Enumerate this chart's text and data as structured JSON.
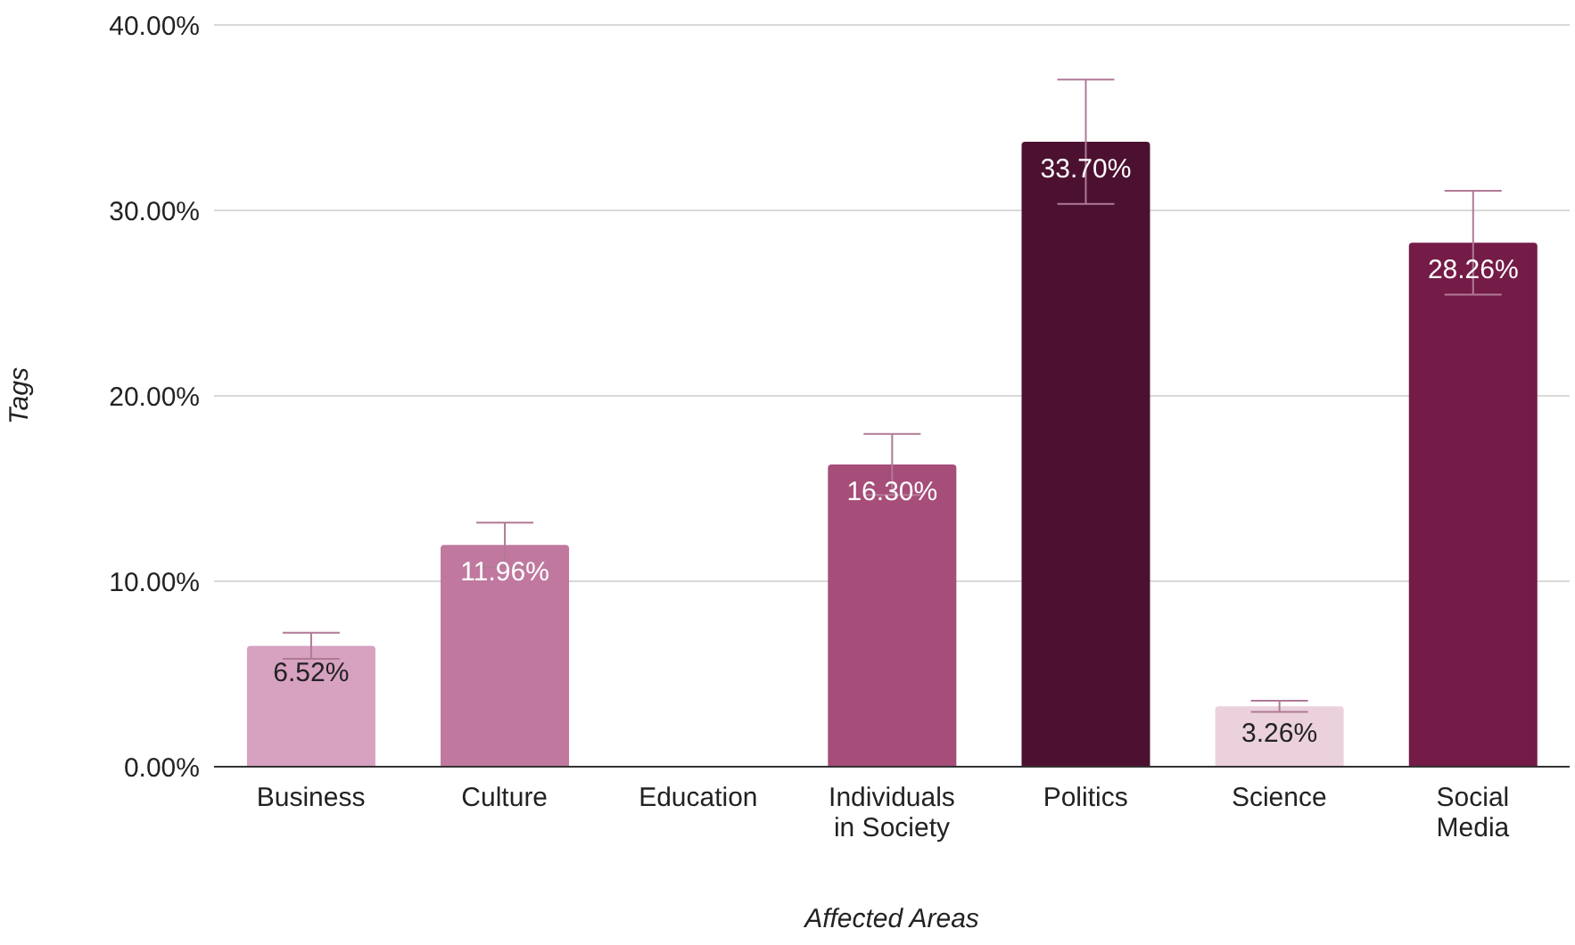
{
  "chart_data": {
    "type": "bar",
    "xlabel": "Affected Areas",
    "ylabel": "Tags",
    "categories": [
      "Business",
      "Culture",
      "Education",
      "Individuals in Society",
      "Politics",
      "Science",
      "Social Media"
    ],
    "values": [
      6.52,
      11.96,
      0,
      16.3,
      33.7,
      3.26,
      28.26
    ],
    "colors": [
      "#d7a1c0",
      "#c0789f",
      "#c0789f",
      "#a64d79",
      "#4c1130",
      "#ead1dc",
      "#741b47"
    ],
    "errors": [
      0.7,
      1.2,
      null,
      1.65,
      3.35,
      0.3,
      2.8
    ],
    "value_labels": [
      "6.52%",
      "11.96%",
      null,
      "16.30%",
      "33.70%",
      "3.26%",
      "28.26%"
    ],
    "ylim": [
      0,
      40
    ],
    "yticks": [
      {
        "value": 0,
        "label": "0.00%"
      },
      {
        "value": 10,
        "label": "10.00%"
      },
      {
        "value": 20,
        "label": "20.00%"
      },
      {
        "value": 30,
        "label": "30.00%"
      },
      {
        "value": 40,
        "label": "40.00%"
      }
    ],
    "grid": "y",
    "legend": false
  }
}
